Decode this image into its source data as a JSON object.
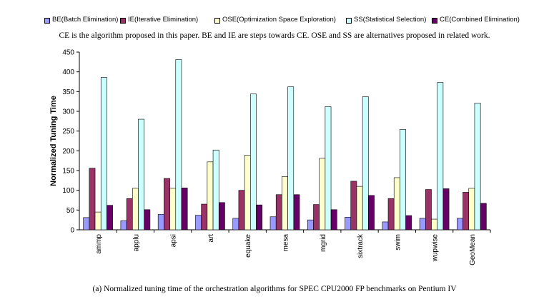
{
  "legend": [
    {
      "label": "BE(Batch Elimination)",
      "color": "#9999ff"
    },
    {
      "label": "IE(Iterative Elimination)",
      "color": "#993366"
    },
    {
      "label": "OSE(Optimization Space Exploration)",
      "color": "#ffffcc"
    },
    {
      "label": "SS(Statistical Selection)",
      "color": "#ccffff"
    },
    {
      "label": "CE(Combined Elimination)",
      "color": "#660066"
    }
  ],
  "note": "CE is the algorithm proposed in this paper. BE and IE are steps towards CE. OSE and SS are alternatives proposed in related work.",
  "caption": "(a) Normalized tuning time of the orchestration algorithms for SPEC CPU2000 FP benchmarks on Pentium IV",
  "chart_data": {
    "type": "bar",
    "ylabel": "Normalized Tuning Time",
    "ylim": [
      0,
      450
    ],
    "yticks": [
      0,
      50,
      100,
      150,
      200,
      250,
      300,
      350,
      400,
      450
    ],
    "grid": false,
    "legend_position": "top",
    "categories": [
      "ammp",
      "applu",
      "apsi",
      "art",
      "equake",
      "mesa",
      "mgrid",
      "sixtrack",
      "swim",
      "wupwise",
      "GeoMean"
    ],
    "series": [
      {
        "name": "BE(Batch Elimination)",
        "color": "#9999ff",
        "values": [
          31,
          23,
          39,
          37,
          29,
          33,
          25,
          32,
          20,
          29,
          29
        ]
      },
      {
        "name": "IE(Iterative Elimination)",
        "color": "#993366",
        "values": [
          156,
          79,
          130,
          65,
          100,
          89,
          64,
          123,
          79,
          102,
          95
        ]
      },
      {
        "name": "OSE(Optimization Space Exploration)",
        "color": "#ffffcc",
        "values": [
          45,
          105,
          105,
          172,
          189,
          135,
          181,
          110,
          132,
          27,
          105
        ]
      },
      {
        "name": "SS(Statistical Selection)",
        "color": "#ccffff",
        "values": [
          386,
          280,
          431,
          202,
          344,
          362,
          312,
          337,
          254,
          373,
          321
        ]
      },
      {
        "name": "CE(Combined Elimination)",
        "color": "#660066",
        "values": [
          62,
          51,
          106,
          69,
          63,
          89,
          51,
          87,
          36,
          104,
          67
        ]
      }
    ]
  }
}
